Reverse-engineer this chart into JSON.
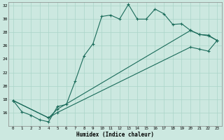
{
  "xlabel": "Humidex (Indice chaleur)",
  "background_color": "#cce8e0",
  "line_color": "#1a6b5a",
  "grid_color": "#aad4c8",
  "xlim": [
    -0.5,
    23.5
  ],
  "ylim": [
    14,
    32.5
  ],
  "xticks": [
    0,
    1,
    2,
    3,
    4,
    5,
    6,
    7,
    8,
    9,
    10,
    11,
    12,
    13,
    14,
    15,
    16,
    17,
    18,
    19,
    20,
    21,
    22,
    23
  ],
  "yticks": [
    16,
    18,
    20,
    22,
    24,
    26,
    28,
    30,
    32
  ],
  "line1_x": [
    0,
    1,
    2,
    3,
    4,
    5,
    6,
    7,
    8,
    9,
    10,
    11,
    12,
    13,
    14,
    15,
    16,
    17,
    18,
    19,
    20,
    21,
    22,
    23
  ],
  "line1_y": [
    17.8,
    16.1,
    15.6,
    14.9,
    14.6,
    16.9,
    17.2,
    20.7,
    24.5,
    26.3,
    30.4,
    30.6,
    30.0,
    32.2,
    30.0,
    30.0,
    31.5,
    30.8,
    29.2,
    29.3,
    28.3,
    27.7,
    27.6,
    26.8
  ],
  "line2_x": [
    0,
    4,
    5,
    20,
    21,
    22,
    23
  ],
  "line2_y": [
    17.8,
    15.2,
    16.5,
    28.3,
    27.7,
    27.5,
    26.8
  ],
  "line3_x": [
    0,
    4,
    5,
    20,
    21,
    22,
    23
  ],
  "line3_y": [
    17.8,
    15.2,
    16.0,
    25.8,
    25.5,
    25.2,
    26.8
  ]
}
